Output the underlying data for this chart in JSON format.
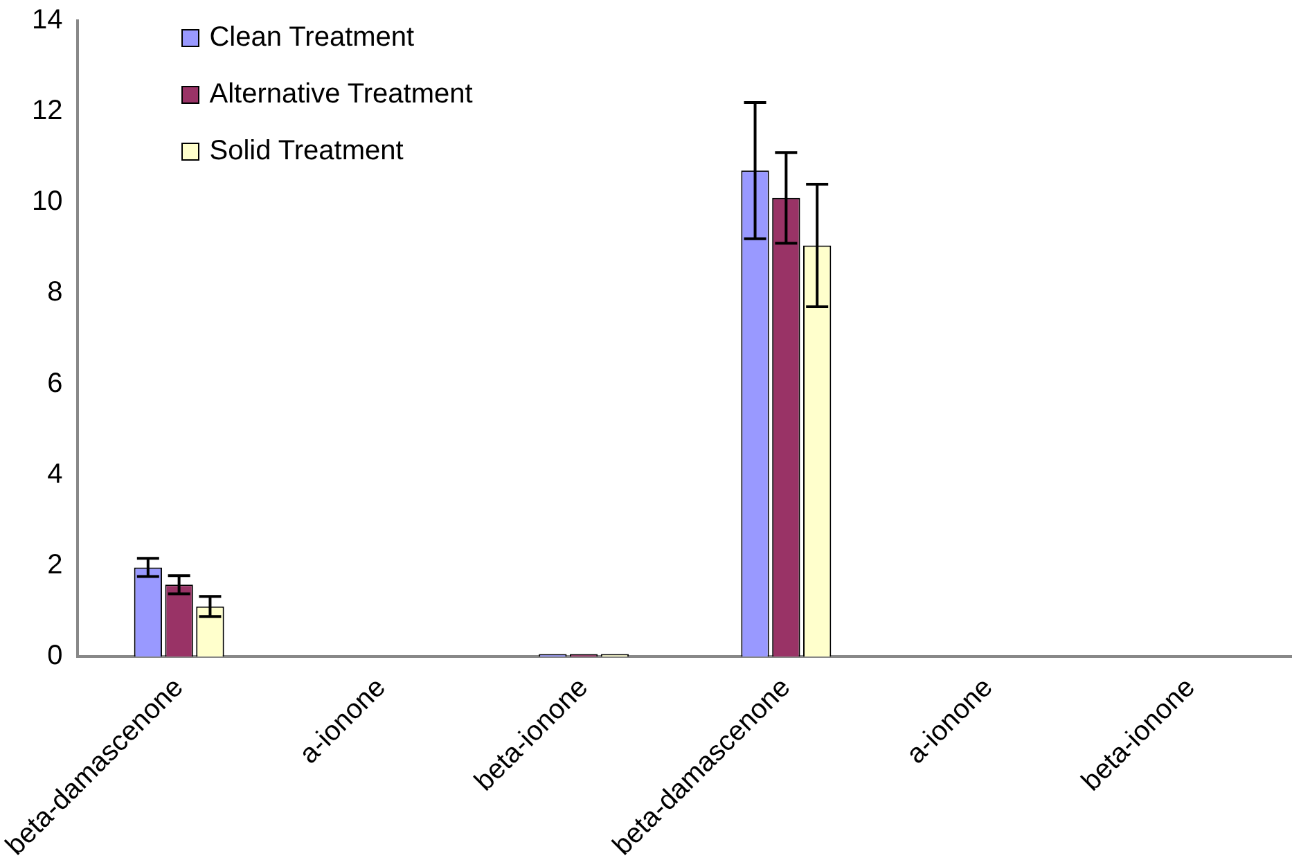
{
  "chart_data": {
    "type": "bar",
    "categories": [
      "beta-damascenone",
      "a-ionone",
      "beta-ionone",
      "beta-damascenone",
      "a-ionone",
      "beta-ionone"
    ],
    "series": [
      {
        "name": "Clean Treatment",
        "color": "#9999ff",
        "values": [
          1.96,
          0,
          0.05,
          10.7,
          0,
          0
        ],
        "errors": [
          0.2,
          null,
          null,
          1.5,
          null,
          null
        ]
      },
      {
        "name": "Alternative Treatment",
        "color": "#993366",
        "values": [
          1.58,
          0,
          0.05,
          10.1,
          0,
          0
        ],
        "errors": [
          0.2,
          null,
          null,
          1.0,
          null,
          null
        ]
      },
      {
        "name": "Solid Treatment",
        "color": "#ffffcc",
        "values": [
          1.1,
          0,
          0.05,
          9.05,
          0,
          0
        ],
        "errors": [
          0.22,
          null,
          null,
          1.35,
          null,
          null
        ]
      }
    ],
    "ylim": [
      0,
      14
    ],
    "yticks": [
      0,
      2,
      4,
      6,
      8,
      10,
      12,
      14
    ],
    "grid": false,
    "legend": "top left"
  }
}
